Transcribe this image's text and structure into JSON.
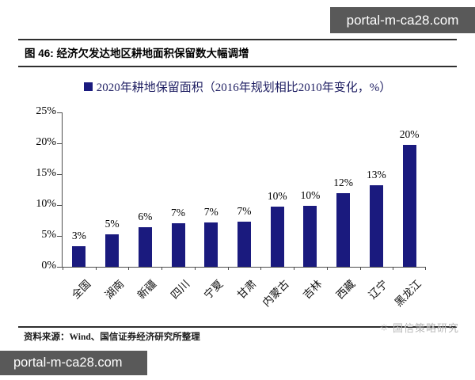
{
  "overlays": {
    "top_right_box": "portal-m-ca28.com",
    "bottom_left_box": "portal-m-ca28.com"
  },
  "figure": {
    "title": "图 46: 经济欠发达地区耕地面积保留数大幅调增",
    "source": "资料来源：Wind、国信证券经济研究所整理",
    "watermark_text": "国信策略研究"
  },
  "icons": {
    "watermark_sun": "☼"
  },
  "colors": {
    "bar": "#1a1a7e",
    "overlay_box": "#595959",
    "axis": "#4d4d4d",
    "rule": "#2f2f2f",
    "watermark": "#b8b8b8"
  },
  "chart_data": {
    "type": "bar",
    "title": "",
    "legend": [
      "2020年耕地保留面积（2016年规划相比2010年变化，%）"
    ],
    "legend_position": "top-center",
    "categories": [
      "全国",
      "湖南",
      "新疆",
      "四川",
      "宁夏",
      "甘肃",
      "内蒙古",
      "吉林",
      "西藏",
      "辽宁",
      "黑龙江"
    ],
    "values": [
      3,
      5,
      6,
      7,
      7,
      7,
      10,
      10,
      12,
      13,
      20
    ],
    "value_labels": [
      "3%",
      "5%",
      "6%",
      "7%",
      "7%",
      "7%",
      "10%",
      "10%",
      "12%",
      "13%",
      "20%"
    ],
    "bar_heights_pct": [
      3.3,
      5.3,
      6.4,
      7.0,
      7.2,
      7.3,
      9.8,
      9.9,
      11.9,
      13.2,
      19.7
    ],
    "xlabel": "",
    "ylabel": "",
    "ylim": [
      0,
      25
    ],
    "yticks": [
      "0%",
      "5%",
      "10%",
      "15%",
      "20%",
      "25%"
    ],
    "grid": false,
    "bar_color": "#1a1a7e"
  }
}
